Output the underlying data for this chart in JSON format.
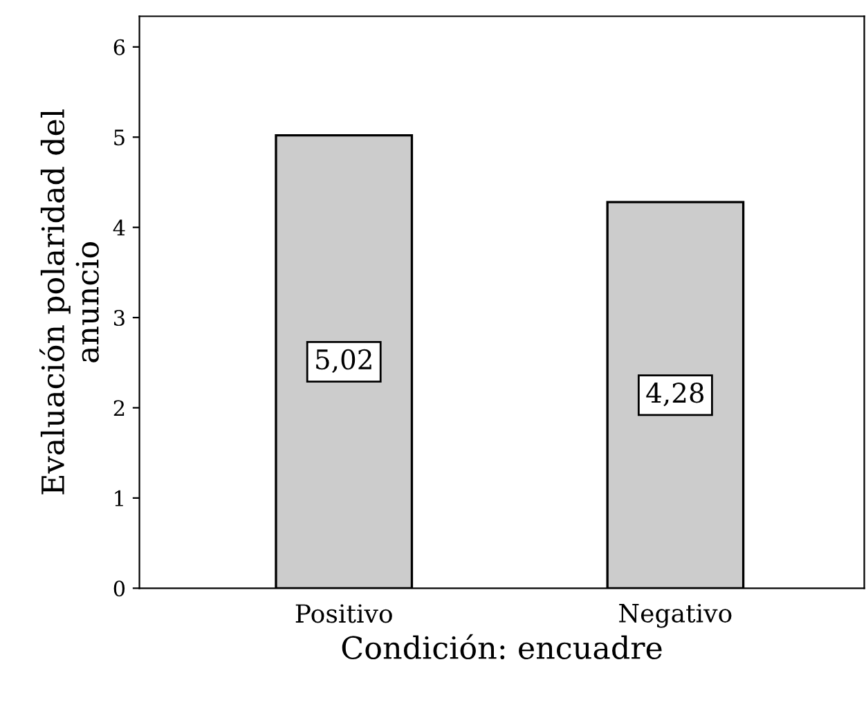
{
  "chart_data": {
    "type": "bar",
    "xlabel": "Condición: encuadre",
    "ylabel": "Evaluación polaridad del\nanuncio",
    "categories": [
      "Positivo",
      "Negativo"
    ],
    "values": [
      5.02,
      4.28
    ],
    "value_labels": [
      "5,02",
      "4,28"
    ],
    "color": "#cccccc",
    "ylim": [
      0,
      6.34
    ],
    "yticks": [
      0,
      1,
      2,
      3,
      4,
      5,
      6
    ],
    "grid": false,
    "legend": false
  }
}
